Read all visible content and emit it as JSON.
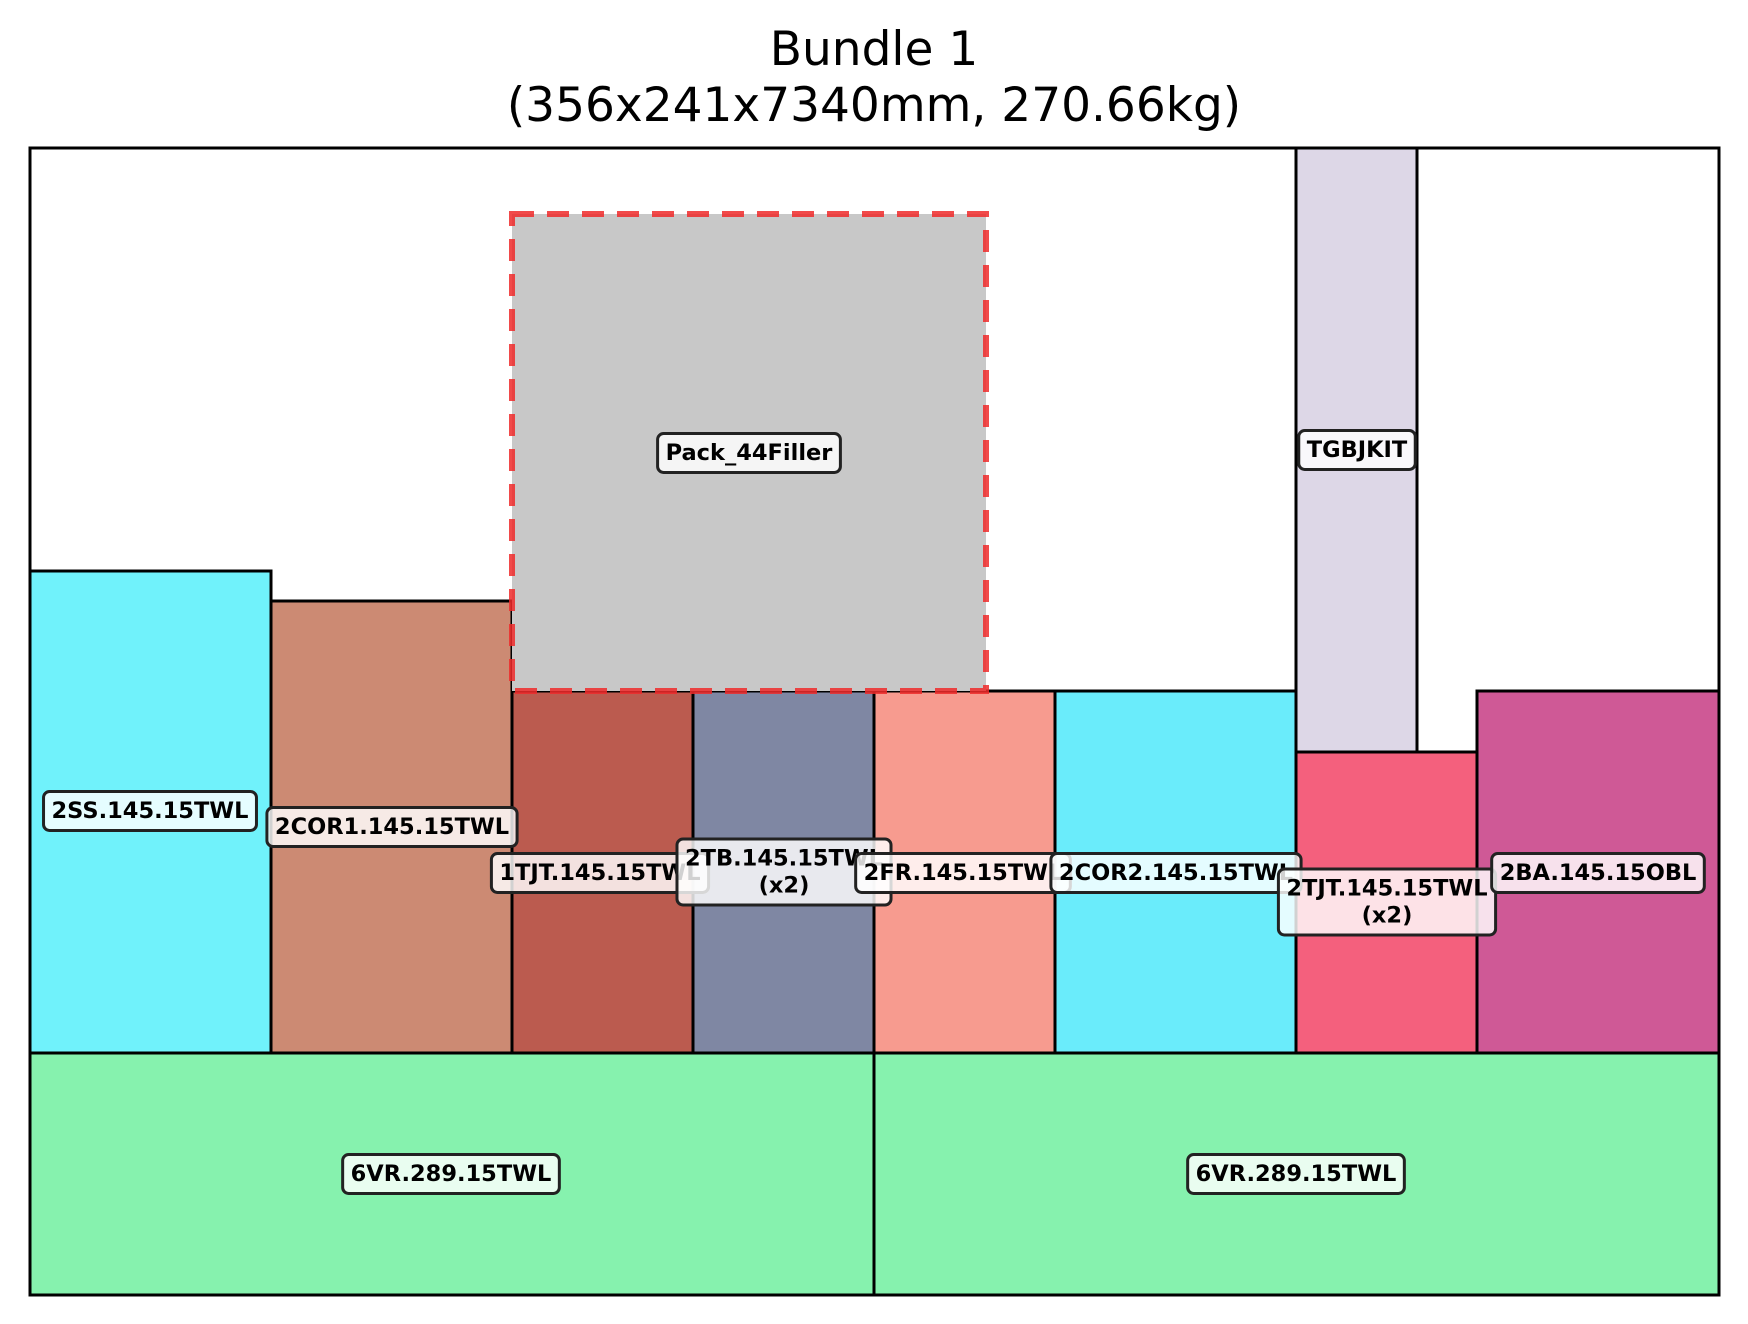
{
  "title": "Bundle 1",
  "subtitle": "(356x241x7340mm, 270.66kg)",
  "colors": {
    "outline": "#000000",
    "filler_border": "#ee2a2a",
    "label_bg": "#ffffff"
  },
  "pieces": [
    {
      "id": "2ss",
      "label": "2SS.145.15TWL",
      "color": "#70f2fb"
    },
    {
      "id": "2cor1",
      "label": "2COR1.145.15TWL",
      "color": "#cc8a73"
    },
    {
      "id": "1tjt",
      "label": "1TJT.145.15TWL",
      "color": "#bb5b4f"
    },
    {
      "id": "2tb",
      "label": "2TB.145.15TWL",
      "label2": "(x2)",
      "color": "#7f87a3"
    },
    {
      "id": "2fr",
      "label": "2FR.145.15TWL",
      "color": "#f79b8f"
    },
    {
      "id": "2cor2",
      "label": "2COR2.145.15TWL",
      "color": "#6aecfb"
    },
    {
      "id": "tgbjkit",
      "label": "TGBJKIT",
      "color": "#ddd7e7"
    },
    {
      "id": "2tjt",
      "label": "2TJT.145.15TWL",
      "label2": "(x2)",
      "color": "#f4607d"
    },
    {
      "id": "2ba",
      "label": "2BA.145.15OBL",
      "color": "#cf5996"
    },
    {
      "id": "6vr-left",
      "label": "6VR.289.15TWL",
      "color": "#86f2ae"
    },
    {
      "id": "6vr-right",
      "label": "6VR.289.15TWL",
      "color": "#86f2ae"
    },
    {
      "id": "filler",
      "label": "Pack_44Filler",
      "color": "#c8c8c8",
      "dashed": true
    }
  ]
}
